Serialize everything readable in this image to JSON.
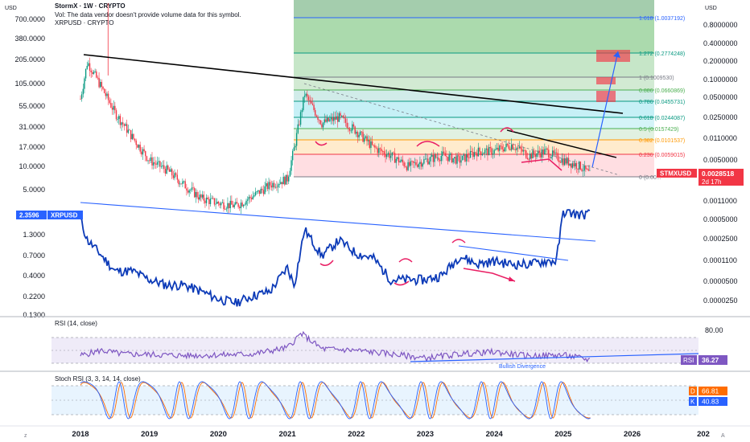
{
  "header": {
    "title": "StormX · 1W · CRYPTO",
    "vol_note": "Vol: The data vendor doesn't provide volume data for this symbol.",
    "overlay_symbol": "XRPUSD · CRYPTO"
  },
  "axis": {
    "currency_left": "USD",
    "currency_right": "USD",
    "left_ticks": [
      "700.0000",
      "380.0000",
      "205.0000",
      "105.0000",
      "55.0000",
      "31.0000",
      "17.0000",
      "10.0000",
      "5.0000",
      "1.3000",
      "0.7000",
      "0.4000",
      "0.2200",
      "0.1300"
    ],
    "right_ticks": [
      "0.8000000",
      "0.4000000",
      "0.2000000",
      "0.1000000",
      "0.0500000",
      "0.0250000",
      "0.0110000",
      "0.0050000",
      "0.0011000",
      "0.0005000",
      "0.0002500",
      "0.0001100",
      "0.0000500",
      "0.0000250"
    ],
    "x_ticks": [
      "2018",
      "2019",
      "2020",
      "2021",
      "2022",
      "2023",
      "2024",
      "2025",
      "2026",
      "202"
    ],
    "rsi_ticks": [
      "80.00"
    ]
  },
  "badges": {
    "xrp_price": "2.3596",
    "xrp_symbol": "XRPUSD",
    "stmx_symbol": "STMXUSD",
    "stmx_price": "0.0028518",
    "stmx_countdown": "2d 17h",
    "rsi_name": "RSI",
    "rsi_value": "36.27",
    "stoch_d_name": "D",
    "stoch_d_value": "66.81",
    "stoch_k_name": "K",
    "stoch_k_value": "40.83"
  },
  "panels": {
    "rsi_title": "RSI (14, close)",
    "stoch_title": "Stoch RSI (3, 3, 14, 14, close)",
    "divergence_label": "Bullish Divergence"
  },
  "fib_levels": [
    {
      "label": "1.618 (1.0037192)",
      "color": "#2962ff"
    },
    {
      "label": "1.272 (0.2774248)",
      "color": "#089981"
    },
    {
      "label": "1 (0.1009530)",
      "color": "#787b86"
    },
    {
      "label": "0.886 (0.0660869)",
      "color": "#4caf50"
    },
    {
      "label": "0.786 (0.0455731)",
      "color": "#089981"
    },
    {
      "label": "0.618 (0.0244087)",
      "color": "#089981"
    },
    {
      "label": "0.5 (0.0157429)",
      "color": "#4caf50"
    },
    {
      "label": "0.382 (0.0101537)",
      "color": "#ff9800"
    },
    {
      "label": "0.236 (0.0059015)",
      "color": "#f23645"
    },
    {
      "label": "0 (0.00...",
      "color": "#787b86"
    }
  ],
  "chart_data": [
    {
      "type": "line",
      "name": "StormX 1W candles (approx closes)",
      "scale": "log",
      "x": [
        2018.0,
        2018.1,
        2018.25,
        2018.5,
        2018.75,
        2019.0,
        2019.25,
        2019.5,
        2019.75,
        2020.0,
        2020.25,
        2020.5,
        2020.75,
        2021.0,
        2021.1,
        2021.25,
        2021.5,
        2021.75,
        2022.0,
        2022.25,
        2022.5,
        2022.75,
        2023.0,
        2023.25,
        2023.5,
        2023.75,
        2024.0,
        2024.25,
        2024.5,
        2024.75,
        2025.0,
        2025.25,
        2025.4
      ],
      "values": [
        0.05,
        0.2,
        0.1,
        0.03,
        0.012,
        0.005,
        0.0035,
        0.002,
        0.0012,
        0.001,
        0.0009,
        0.0013,
        0.002,
        0.0025,
        0.008,
        0.06,
        0.02,
        0.025,
        0.015,
        0.008,
        0.006,
        0.004,
        0.005,
        0.006,
        0.005,
        0.007,
        0.007,
        0.009,
        0.006,
        0.007,
        0.005,
        0.004,
        0.0028518
      ]
    },
    {
      "type": "line",
      "name": "XRPUSD",
      "scale": "log",
      "x": [
        2018.0,
        2018.1,
        2018.25,
        2018.5,
        2018.75,
        2019.0,
        2019.25,
        2019.5,
        2019.75,
        2020.0,
        2020.25,
        2020.5,
        2020.75,
        2021.0,
        2021.1,
        2021.25,
        2021.5,
        2021.75,
        2022.0,
        2022.25,
        2022.5,
        2022.75,
        2023.0,
        2023.25,
        2023.5,
        2023.75,
        2024.0,
        2024.25,
        2024.5,
        2024.75,
        2024.9,
        2025.0,
        2025.25,
        2025.4
      ],
      "values": [
        2.0,
        1.1,
        0.8,
        0.45,
        0.45,
        0.35,
        0.3,
        0.3,
        0.25,
        0.2,
        0.18,
        0.22,
        0.25,
        0.5,
        0.3,
        1.5,
        0.7,
        1.1,
        0.75,
        0.65,
        0.35,
        0.35,
        0.35,
        0.4,
        0.7,
        0.55,
        0.6,
        0.55,
        0.55,
        0.6,
        0.6,
        2.5,
        2.3,
        2.3596
      ]
    },
    {
      "type": "line",
      "name": "RSI (14, close)",
      "x": [
        2018.0,
        2018.3,
        2018.6,
        2019.0,
        2019.5,
        2020.0,
        2020.5,
        2021.0,
        2021.2,
        2021.5,
        2022.0,
        2022.5,
        2023.0,
        2023.5,
        2024.0,
        2024.5,
        2025.0,
        2025.4
      ],
      "values": [
        45,
        55,
        48,
        47,
        45,
        46,
        48,
        60,
        88,
        58,
        55,
        48,
        40,
        48,
        52,
        44,
        46,
        36.27
      ],
      "ylim": [
        0,
        100
      ]
    },
    {
      "type": "line",
      "name": "Stoch RSI (3, 3, 14, 14, close)",
      "series": [
        {
          "name": "K",
          "value": 40.83
        },
        {
          "name": "D",
          "value": 66.81
        }
      ],
      "ylim": [
        0,
        100
      ]
    }
  ]
}
